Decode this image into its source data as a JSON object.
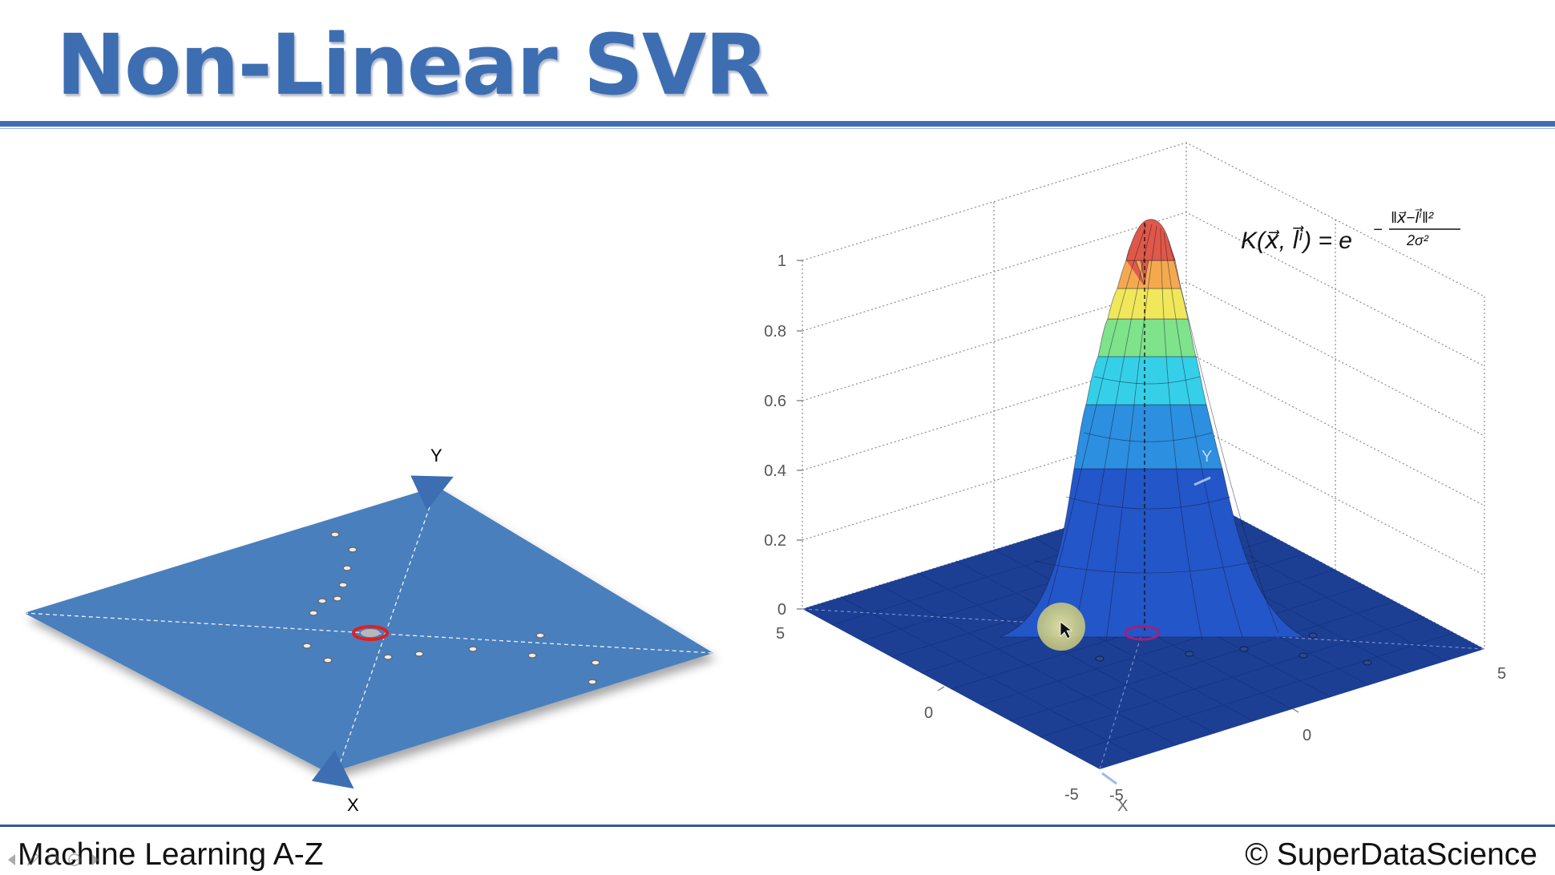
{
  "slide": {
    "title": "Non-Linear SVR"
  },
  "plane_diagram": {
    "axis_x_label": "X",
    "axis_y_label": "Y",
    "plane_color": "#4a7fbd"
  },
  "surface_plot": {
    "z_ticks": [
      "0",
      "0.2",
      "0.4",
      "0.6",
      "0.8",
      "1"
    ],
    "x_ticks": [
      "-5",
      "0",
      "5"
    ],
    "y_ticks": [
      "-5",
      "0",
      "5"
    ],
    "axis_x_label": "X",
    "axis_y_label": "Y",
    "floor_color": "#1c3f94"
  },
  "formula": {
    "lhs": "K(x⃗, l⃗ⁱ) = e",
    "exponent_minus": "−",
    "exponent_numerator": "‖x⃗−l⃗ⁱ‖²",
    "exponent_denominator": "2σ²"
  },
  "footer": {
    "course": "Machine Learning A-Z",
    "copyright": "© SuperDataScience"
  },
  "nav_icons": [
    "prev-arrow-icon",
    "pen-icon",
    "magnify-icon",
    "menu-icon",
    "next-arrow-icon"
  ]
}
